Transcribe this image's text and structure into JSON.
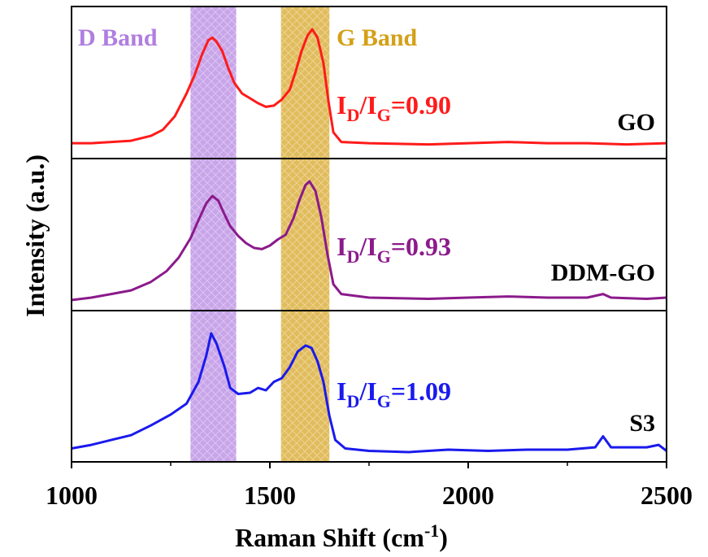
{
  "chart_data": {
    "type": "line",
    "xlabel_main": "Raman Shift (cm",
    "xlabel_sup": "-1",
    "xlabel_end": ")",
    "ylabel": "Intensity (a.u.)",
    "xlim": [
      1000,
      2500
    ],
    "xticks": [
      "1000",
      "1500",
      "2000",
      "2500"
    ],
    "xtick_values": [
      1000,
      1500,
      2000,
      2500
    ],
    "bands": [
      {
        "label": "D Band",
        "x_range": [
          1300,
          1415
        ],
        "color": "#b07ee0"
      },
      {
        "label": "G Band",
        "x_range": [
          1528,
          1650
        ],
        "color": "#d4a017"
      }
    ],
    "panels": [
      {
        "name": "GO",
        "color": "#ff1a1a",
        "ratio_main": "I",
        "ratio_sub1": "D",
        "ratio_slash": "/I",
        "ratio_sub2": "G",
        "ratio_value": "=0.90",
        "points": [
          [
            1000,
            0.06
          ],
          [
            1050,
            0.06
          ],
          [
            1100,
            0.07
          ],
          [
            1150,
            0.08
          ],
          [
            1200,
            0.12
          ],
          [
            1230,
            0.17
          ],
          [
            1260,
            0.28
          ],
          [
            1290,
            0.47
          ],
          [
            1310,
            0.62
          ],
          [
            1330,
            0.8
          ],
          [
            1345,
            0.91
          ],
          [
            1355,
            0.93
          ],
          [
            1365,
            0.9
          ],
          [
            1380,
            0.82
          ],
          [
            1395,
            0.68
          ],
          [
            1410,
            0.56
          ],
          [
            1430,
            0.47
          ],
          [
            1450,
            0.43
          ],
          [
            1470,
            0.39
          ],
          [
            1490,
            0.36
          ],
          [
            1510,
            0.37
          ],
          [
            1530,
            0.42
          ],
          [
            1550,
            0.5
          ],
          [
            1565,
            0.65
          ],
          [
            1580,
            0.82
          ],
          [
            1595,
            0.95
          ],
          [
            1607,
            1.0
          ],
          [
            1620,
            0.93
          ],
          [
            1635,
            0.72
          ],
          [
            1648,
            0.4
          ],
          [
            1660,
            0.15
          ],
          [
            1680,
            0.07
          ],
          [
            1750,
            0.06
          ],
          [
            1900,
            0.05
          ],
          [
            2000,
            0.06
          ],
          [
            2100,
            0.07
          ],
          [
            2200,
            0.06
          ],
          [
            2300,
            0.06
          ],
          [
            2400,
            0.05
          ],
          [
            2500,
            0.06
          ]
        ]
      },
      {
        "name": "DDM-GO",
        "color": "#8b1a8b",
        "ratio_main": "I",
        "ratio_sub1": "D",
        "ratio_slash": "/I",
        "ratio_sub2": "G",
        "ratio_value": "=0.93",
        "points": [
          [
            1000,
            0.02
          ],
          [
            1050,
            0.04
          ],
          [
            1100,
            0.07
          ],
          [
            1150,
            0.1
          ],
          [
            1200,
            0.17
          ],
          [
            1240,
            0.26
          ],
          [
            1270,
            0.37
          ],
          [
            1300,
            0.53
          ],
          [
            1320,
            0.68
          ],
          [
            1340,
            0.82
          ],
          [
            1355,
            0.88
          ],
          [
            1370,
            0.84
          ],
          [
            1385,
            0.73
          ],
          [
            1400,
            0.63
          ],
          [
            1420,
            0.55
          ],
          [
            1440,
            0.49
          ],
          [
            1460,
            0.45
          ],
          [
            1480,
            0.44
          ],
          [
            1500,
            0.47
          ],
          [
            1520,
            0.52
          ],
          [
            1540,
            0.56
          ],
          [
            1560,
            0.7
          ],
          [
            1575,
            0.85
          ],
          [
            1590,
            0.97
          ],
          [
            1600,
            1.0
          ],
          [
            1615,
            0.92
          ],
          [
            1630,
            0.7
          ],
          [
            1645,
            0.4
          ],
          [
            1660,
            0.15
          ],
          [
            1680,
            0.07
          ],
          [
            1750,
            0.04
          ],
          [
            1900,
            0.03
          ],
          [
            2000,
            0.04
          ],
          [
            2100,
            0.05
          ],
          [
            2200,
            0.04
          ],
          [
            2300,
            0.04
          ],
          [
            2340,
            0.07
          ],
          [
            2360,
            0.04
          ],
          [
            2450,
            0.03
          ],
          [
            2500,
            0.04
          ]
        ]
      },
      {
        "name": "S3",
        "color": "#1a1aee",
        "ratio_main": "I",
        "ratio_sub1": "D",
        "ratio_slash": "/I",
        "ratio_sub2": "G",
        "ratio_value": "=1.09",
        "points": [
          [
            1000,
            0.05
          ],
          [
            1050,
            0.08
          ],
          [
            1100,
            0.12
          ],
          [
            1150,
            0.16
          ],
          [
            1200,
            0.24
          ],
          [
            1250,
            0.33
          ],
          [
            1290,
            0.42
          ],
          [
            1320,
            0.6
          ],
          [
            1340,
            0.82
          ],
          [
            1352,
            1.0
          ],
          [
            1365,
            0.92
          ],
          [
            1385,
            0.73
          ],
          [
            1400,
            0.55
          ],
          [
            1420,
            0.5
          ],
          [
            1450,
            0.51
          ],
          [
            1470,
            0.55
          ],
          [
            1490,
            0.53
          ],
          [
            1510,
            0.6
          ],
          [
            1530,
            0.63
          ],
          [
            1550,
            0.72
          ],
          [
            1570,
            0.85
          ],
          [
            1590,
            0.9
          ],
          [
            1605,
            0.88
          ],
          [
            1620,
            0.77
          ],
          [
            1635,
            0.6
          ],
          [
            1650,
            0.32
          ],
          [
            1665,
            0.12
          ],
          [
            1690,
            0.05
          ],
          [
            1750,
            0.03
          ],
          [
            1850,
            0.02
          ],
          [
            1950,
            0.04
          ],
          [
            2050,
            0.03
          ],
          [
            2150,
            0.04
          ],
          [
            2250,
            0.04
          ],
          [
            2320,
            0.06
          ],
          [
            2340,
            0.15
          ],
          [
            2360,
            0.06
          ],
          [
            2450,
            0.06
          ],
          [
            2480,
            0.08
          ],
          [
            2500,
            0.03
          ]
        ]
      }
    ]
  }
}
